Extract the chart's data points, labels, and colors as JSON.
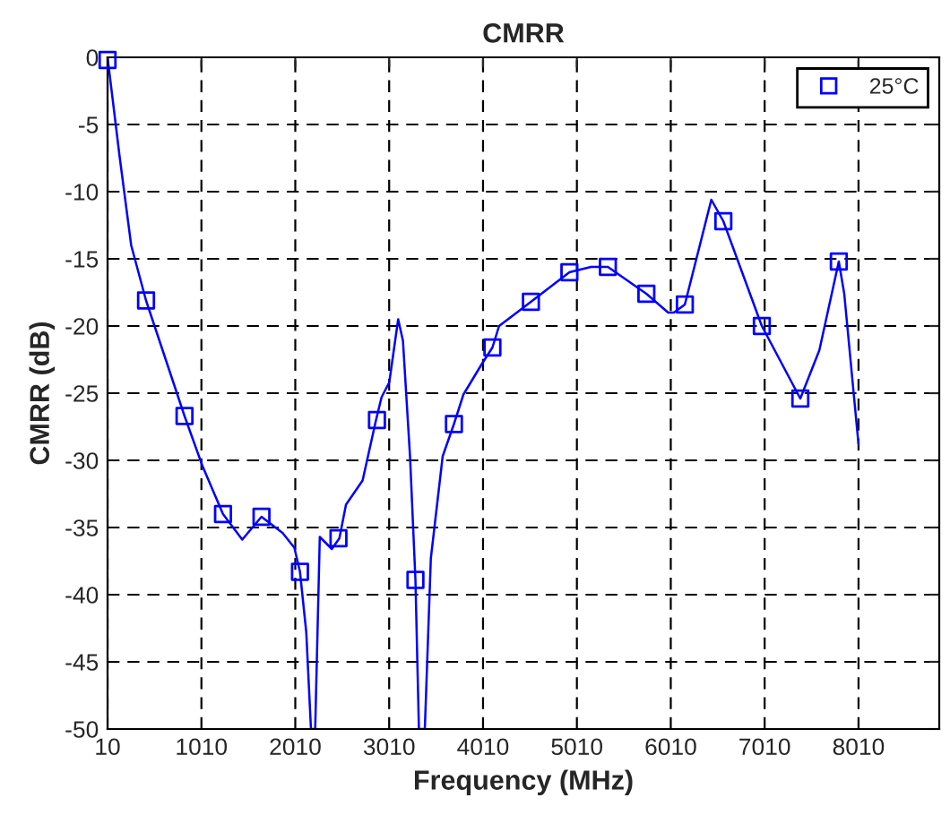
{
  "chart_data": {
    "type": "line",
    "title": "CMRR",
    "xlabel": "Frequency (MHz)",
    "ylabel": "CMRR (dB)",
    "xlim": [
      10,
      8870
    ],
    "xticks": [
      10,
      1010,
      2010,
      3010,
      4010,
      5010,
      6010,
      7010,
      8010
    ],
    "ylim": [
      -50,
      0
    ],
    "yticks": [
      -50,
      -45,
      -40,
      -35,
      -30,
      -25,
      -20,
      -15,
      -10,
      -5,
      0
    ],
    "grid": true,
    "legend": "top right",
    "series": [
      {
        "color": "#0000ff",
        "marker": "none",
        "line_style": "solid",
        "x": [
          10,
          137,
          262,
          420,
          830,
          1020,
          1240,
          1445,
          1650,
          1874,
          2000,
          2060,
          2127,
          2177,
          2222,
          2271,
          2399,
          2480,
          2550,
          2727,
          2870,
          2929,
          3011,
          3106,
          3157,
          3233,
          3290,
          3327,
          3390,
          3454,
          3580,
          3700,
          3801,
          3991,
          4110,
          4181,
          4370,
          4520,
          4930,
          5161,
          5340,
          5750,
          5982,
          6044,
          6160,
          6442,
          6570,
          6980,
          7390,
          7593,
          7800,
          7858,
          8010
        ],
        "values": [
          0,
          -7.3,
          -14.0,
          -18.1,
          -26.7,
          -30.4,
          -34.0,
          -35.9,
          -34.2,
          -35.4,
          -36.5,
          -38.3,
          -42.8,
          -50,
          -50,
          -35.7,
          -36.6,
          -35.8,
          -33.3,
          -31.5,
          -27.0,
          -25.3,
          -24.2,
          -19.5,
          -21.1,
          -29.8,
          -38.9,
          -50,
          -50,
          -37.3,
          -29.7,
          -27.3,
          -25.1,
          -22.9,
          -21.6,
          -20.0,
          -19.0,
          -18.2,
          -16.0,
          -15.6,
          -15.6,
          -17.6,
          -19.0,
          -19.0,
          -18.4,
          -10.6,
          -12.2,
          -20.0,
          -25.4,
          -21.8,
          -15.2,
          -17.6,
          -28.8
        ]
      },
      {
        "type": "scatter",
        "name": "25°C",
        "color": "#0000ff",
        "marker": "square",
        "x": [
          10,
          420,
          830,
          1240,
          1650,
          2060,
          2470,
          2880,
          3290,
          3700,
          4110,
          4520,
          4930,
          5340,
          5750,
          6160,
          6570,
          6980,
          7390,
          7800
        ],
        "values": [
          -0.2,
          -18.1,
          -26.7,
          -34.0,
          -34.2,
          -38.3,
          -35.8,
          -27.0,
          -38.9,
          -27.3,
          -21.6,
          -18.2,
          -16.0,
          -15.6,
          -17.6,
          -18.4,
          -12.2,
          -20.0,
          -25.4,
          -15.2
        ]
      }
    ]
  }
}
